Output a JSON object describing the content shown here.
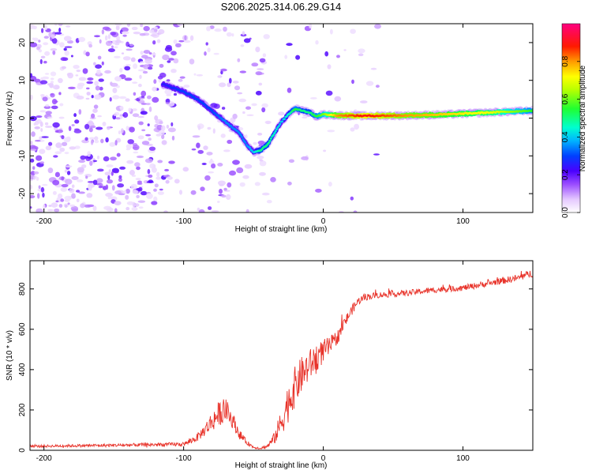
{
  "chart_data": [
    {
      "type": "heatmap",
      "title": "S206.2025.314.06.29.G14",
      "xlabel": "Height of straight line (km)",
      "ylabel": "Frequency (Hz)",
      "xlim": [
        -210,
        150
      ],
      "ylim": [
        -25,
        25
      ],
      "xticks": [
        -200,
        -100,
        0,
        100
      ],
      "yticks": [
        -20,
        -10,
        0,
        10,
        20
      ],
      "colorbar": {
        "label": "Normalized spectral amplitude",
        "range": [
          0,
          1
        ],
        "ticks": [
          "0.0",
          "0.2",
          "0.4",
          "0.6",
          "0.8"
        ]
      },
      "ridge": {
        "description": "dominant frequency vs height",
        "x": [
          -115,
          -100,
          -90,
          -80,
          -70,
          -60,
          -55,
          -50,
          -45,
          -40,
          -35,
          -30,
          -25,
          -20,
          -15,
          -10,
          -5,
          0,
          10,
          30,
          60,
          90,
          120,
          150
        ],
        "y": [
          9,
          7,
          5,
          2,
          -1,
          -4,
          -7,
          -9,
          -8.5,
          -7,
          -4,
          -1,
          1,
          2.5,
          2,
          1.5,
          0.5,
          1,
          0.7,
          0.6,
          0.7,
          1.0,
          1.5,
          2.0
        ],
        "amplitude": [
          0.25,
          0.3,
          0.3,
          0.3,
          0.35,
          0.35,
          0.35,
          0.4,
          0.5,
          0.5,
          0.45,
          0.4,
          0.45,
          0.55,
          0.5,
          0.5,
          0.55,
          0.6,
          0.8,
          0.9,
          0.8,
          0.75,
          0.7,
          0.55
        ]
      }
    },
    {
      "type": "line",
      "xlabel": "Height of straight line (km)",
      "ylabel": "SNR (10 * v/v)",
      "xlim": [
        -210,
        150
      ],
      "ylim": [
        0,
        940
      ],
      "xticks": [
        -200,
        -100,
        0,
        100
      ],
      "yticks": [
        0,
        200,
        400,
        600,
        800
      ],
      "series": [
        {
          "name": "SNR",
          "color": "#e8332a",
          "x": [
            -210,
            -150,
            -100,
            -95,
            -90,
            -85,
            -80,
            -75,
            -70,
            -65,
            -60,
            -55,
            -50,
            -45,
            -40,
            -35,
            -30,
            -25,
            -20,
            -15,
            -10,
            -5,
            0,
            5,
            10,
            15,
            20,
            25,
            30,
            40,
            60,
            80,
            100,
            120,
            140,
            150
          ],
          "values": [
            20,
            25,
            30,
            45,
            65,
            100,
            140,
            180,
            200,
            150,
            80,
            40,
            15,
            10,
            20,
            60,
            140,
            240,
            320,
            380,
            420,
            460,
            490,
            520,
            560,
            630,
            690,
            740,
            760,
            770,
            780,
            795,
            805,
            830,
            855,
            880
          ],
          "noise": [
            6,
            8,
            10,
            15,
            20,
            30,
            50,
            60,
            60,
            40,
            25,
            12,
            6,
            6,
            10,
            30,
            70,
            100,
            100,
            90,
            80,
            70,
            60,
            45,
            35,
            30,
            25,
            20,
            18,
            15,
            15,
            15,
            15,
            15,
            18,
            20
          ]
        }
      ]
    }
  ]
}
